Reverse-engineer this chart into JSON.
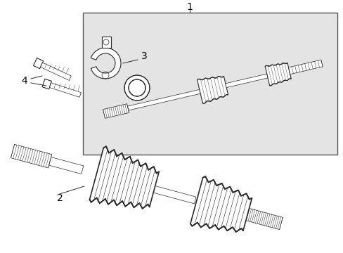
{
  "bg_color": "#ffffff",
  "box_bg": "#e0e0e0",
  "line_color": "#2a2a2a",
  "label_color": "#000000",
  "fig_w": 4.89,
  "fig_h": 3.6,
  "dpi": 100,
  "label1": "1",
  "label2": "2",
  "label3": "3",
  "label4": "4"
}
